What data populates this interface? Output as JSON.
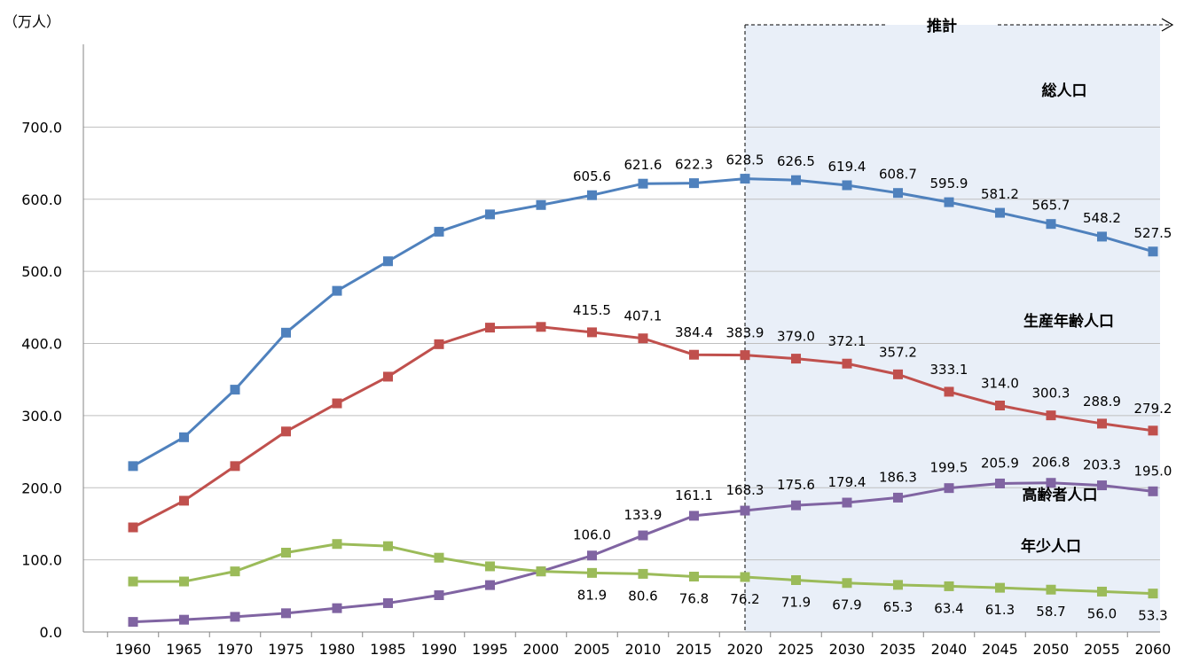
{
  "chart_data": {
    "type": "line",
    "unit_label": "（万人）",
    "projection_label": "推計",
    "projection_start": 2020,
    "ylim": [
      0,
      700
    ],
    "y_ticks": [
      "0.0",
      "100.0",
      "200.0",
      "300.0",
      "400.0",
      "500.0",
      "600.0",
      "700.0"
    ],
    "x": [
      1960,
      1965,
      1970,
      1975,
      1980,
      1985,
      1990,
      1995,
      2000,
      2005,
      2010,
      2015,
      2020,
      2025,
      2030,
      2035,
      2040,
      2045,
      2050,
      2055,
      2060
    ],
    "grid": true,
    "series": [
      {
        "name": "総人口",
        "color": "#4F81BD",
        "values": [
          230,
          270,
          336,
          415,
          473,
          514,
          555,
          579,
          592,
          605.6,
          621.6,
          622.3,
          628.5,
          626.5,
          619.4,
          608.7,
          595.9,
          581.2,
          565.7,
          548.2,
          527.5
        ],
        "labels": [
          null,
          null,
          null,
          null,
          null,
          null,
          null,
          null,
          null,
          "605.6",
          "621.6",
          "622.3",
          "628.5",
          "626.5",
          "619.4",
          "608.7",
          "595.9",
          "581.2",
          "565.7",
          "548.2",
          "527.5"
        ]
      },
      {
        "name": "生産年齢人口",
        "color": "#C0504D",
        "values": [
          145,
          182,
          230,
          278,
          317,
          354,
          399,
          422,
          423,
          415.5,
          407.1,
          384.4,
          383.9,
          379.0,
          372.1,
          357.2,
          333.1,
          314.0,
          300.3,
          288.9,
          279.2
        ],
        "labels": [
          null,
          null,
          null,
          null,
          null,
          null,
          null,
          null,
          null,
          "415.5",
          "407.1",
          "384.4",
          "383.9",
          "379.0",
          "372.1",
          "357.2",
          "333.1",
          "314.0",
          "300.3",
          "288.9",
          "279.2"
        ]
      },
      {
        "name": "高齢者人口",
        "color": "#8064A2",
        "values": [
          14,
          17,
          21,
          26,
          33,
          40,
          51,
          65,
          84,
          106.0,
          133.9,
          161.1,
          168.3,
          175.6,
          179.4,
          186.3,
          199.5,
          205.9,
          206.8,
          203.3,
          195.0
        ],
        "labels": [
          null,
          null,
          null,
          null,
          null,
          null,
          null,
          null,
          null,
          "106.0",
          "133.9",
          "161.1",
          "168.3",
          "175.6",
          "179.4",
          "186.3",
          "199.5",
          "205.9",
          "206.8",
          "203.3",
          "195.0"
        ]
      },
      {
        "name": "年少人口",
        "color": "#9BBB59",
        "values": [
          70,
          70,
          84,
          110,
          122,
          119,
          103,
          91,
          84,
          81.9,
          80.6,
          76.8,
          76.2,
          71.9,
          67.9,
          65.3,
          63.4,
          61.3,
          58.7,
          56.0,
          53.3
        ],
        "labels": [
          null,
          null,
          null,
          null,
          null,
          null,
          null,
          null,
          null,
          "81.9",
          "80.6",
          "76.8",
          "76.2",
          "71.9",
          "67.9",
          "65.3",
          "63.4",
          "61.3",
          "58.7",
          "56.0",
          "53.3"
        ]
      }
    ]
  }
}
